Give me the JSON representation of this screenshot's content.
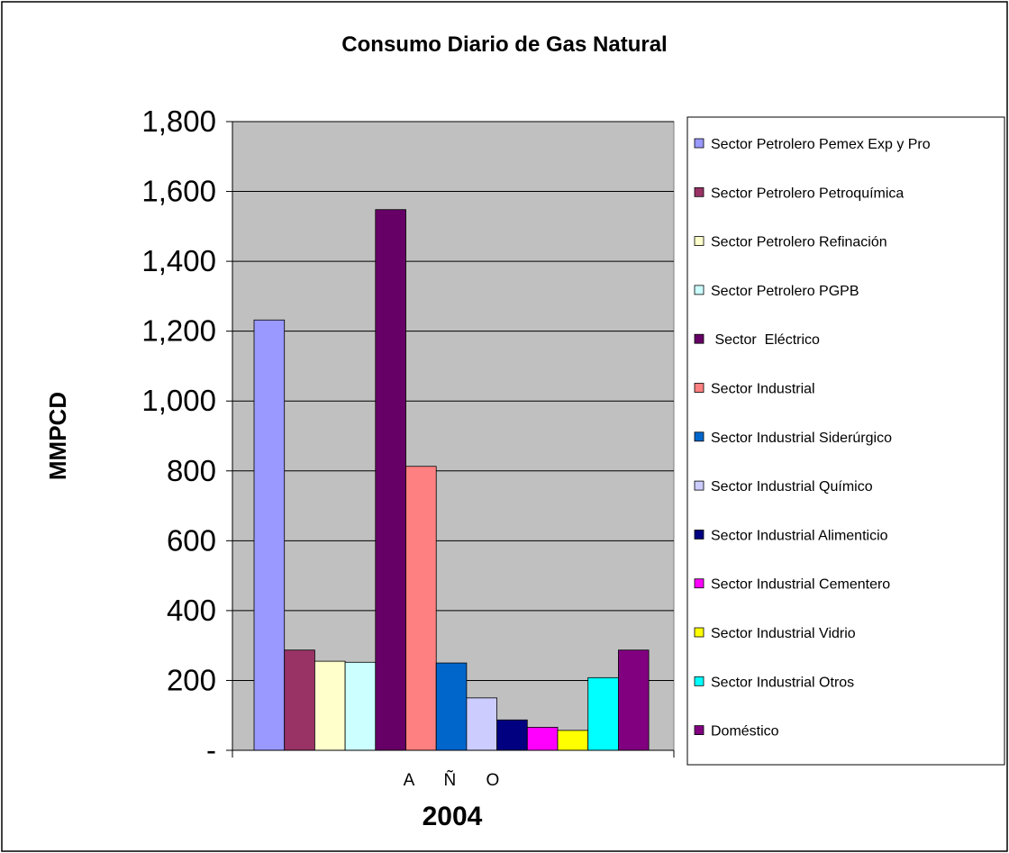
{
  "chart_data": {
    "type": "bar",
    "title": "Consumo Diario de Gas Natural",
    "ylabel": "MMPCD",
    "xcategory": "A Ñ O",
    "xlabel": "2004",
    "ylim": [
      0,
      1800
    ],
    "yticks": [
      {
        "value": 0,
        "label": "-"
      },
      {
        "value": 200,
        "label": "200"
      },
      {
        "value": 400,
        "label": "400"
      },
      {
        "value": 600,
        "label": "600"
      },
      {
        "value": 800,
        "label": "800"
      },
      {
        "value": 1000,
        "label": "1,000"
      },
      {
        "value": 1200,
        "label": "1,200"
      },
      {
        "value": 1400,
        "label": "1,400"
      },
      {
        "value": 1600,
        "label": "1,600"
      },
      {
        "value": 1800,
        "label": "1,800"
      }
    ],
    "grid": true,
    "legend_position": "right",
    "series": [
      {
        "name": "Sector Petrolero Pemex Exp y Pro",
        "value": 1232,
        "color": "#9999ff"
      },
      {
        "name": "Sector Petrolero Petroquímica",
        "value": 287,
        "color": "#993366"
      },
      {
        "name": "Sector Petrolero Refinación",
        "value": 255,
        "color": "#ffffcc"
      },
      {
        "name": "Sector Petrolero PGPB",
        "value": 252,
        "color": "#ccffff"
      },
      {
        "name": " Sector  Eléctrico",
        "value": 1548,
        "color": "#660066"
      },
      {
        "name": "Sector Industrial",
        "value": 813,
        "color": "#ff8080"
      },
      {
        "name": "Sector Industrial Siderúrgico",
        "value": 250,
        "color": "#0066cc"
      },
      {
        "name": "Sector Industrial Químico",
        "value": 150,
        "color": "#ccccff"
      },
      {
        "name": "Sector Industrial Alimenticio",
        "value": 87,
        "color": "#000080"
      },
      {
        "name": "Sector Industrial Cementero",
        "value": 66,
        "color": "#ff00ff"
      },
      {
        "name": "Sector Industrial Vidrio",
        "value": 57,
        "color": "#ffff00"
      },
      {
        "name": "Sector Industrial Otros",
        "value": 208,
        "color": "#00ffff"
      },
      {
        "name": "Doméstico",
        "value": 287,
        "color": "#800080"
      }
    ]
  }
}
